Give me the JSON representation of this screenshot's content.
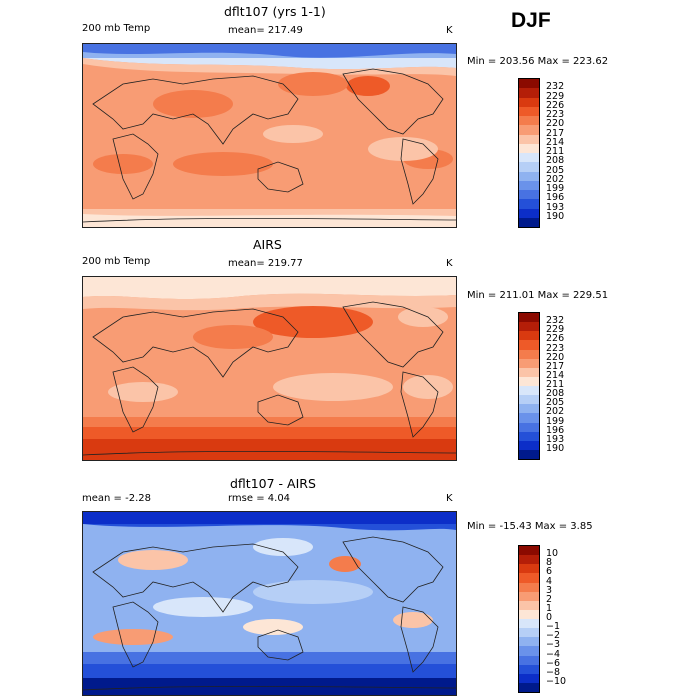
{
  "season": "DJF",
  "panels": [
    {
      "title": "dflt107 (yrs 1-1)",
      "left_label": "200 mb Temp",
      "mid_label": "mean= 217.49",
      "unit": "K",
      "minmax": "Min = 203.56 Max = 223.62",
      "colorbar": {
        "levels": [
          "232",
          "229",
          "226",
          "223",
          "220",
          "217",
          "214",
          "211",
          "208",
          "205",
          "202",
          "199",
          "196",
          "193",
          "190"
        ],
        "colors": [
          "#8b0a00",
          "#b41e08",
          "#d93a10",
          "#ee5a28",
          "#f47c4c",
          "#f89c74",
          "#fbc4a8",
          "#fde6d6",
          "#d8e6fa",
          "#b6cff6",
          "#8fb2f0",
          "#6a92ea",
          "#4872e2",
          "#2450d8",
          "#0c2ec8",
          "#001a8c"
        ]
      }
    },
    {
      "title": "AIRS",
      "left_label": "200 mb Temp",
      "mid_label": "mean= 219.77",
      "unit": "K",
      "minmax": "Min = 211.01 Max = 229.51",
      "colorbar": {
        "levels": [
          "232",
          "229",
          "226",
          "223",
          "220",
          "217",
          "214",
          "211",
          "208",
          "205",
          "202",
          "199",
          "196",
          "193",
          "190"
        ],
        "colors": [
          "#8b0a00",
          "#b41e08",
          "#d93a10",
          "#ee5a28",
          "#f47c4c",
          "#f89c74",
          "#fbc4a8",
          "#fde6d6",
          "#d8e6fa",
          "#b6cff6",
          "#8fb2f0",
          "#6a92ea",
          "#4872e2",
          "#2450d8",
          "#0c2ec8",
          "#001a8c"
        ]
      }
    },
    {
      "title": "dflt107 - AIRS",
      "left_label": "mean =   -2.28",
      "mid_label": "rmse =    4.04",
      "unit": "K",
      "minmax": "Min = -15.43 Max =    3.85",
      "colorbar": {
        "levels": [
          "10",
          "8",
          "6",
          "4",
          "3",
          "2",
          "1",
          "0",
          "−1",
          "−2",
          "−3",
          "−4",
          "−6",
          "−8",
          "−10"
        ],
        "colors": [
          "#8b0a00",
          "#b41e08",
          "#d93a10",
          "#ee5a28",
          "#f47c4c",
          "#f89c74",
          "#fbc4a8",
          "#fde6d6",
          "#d8e6fa",
          "#b6cff6",
          "#8fb2f0",
          "#6a92ea",
          "#4872e2",
          "#2450d8",
          "#0c2ec8",
          "#001a8c"
        ]
      }
    }
  ]
}
